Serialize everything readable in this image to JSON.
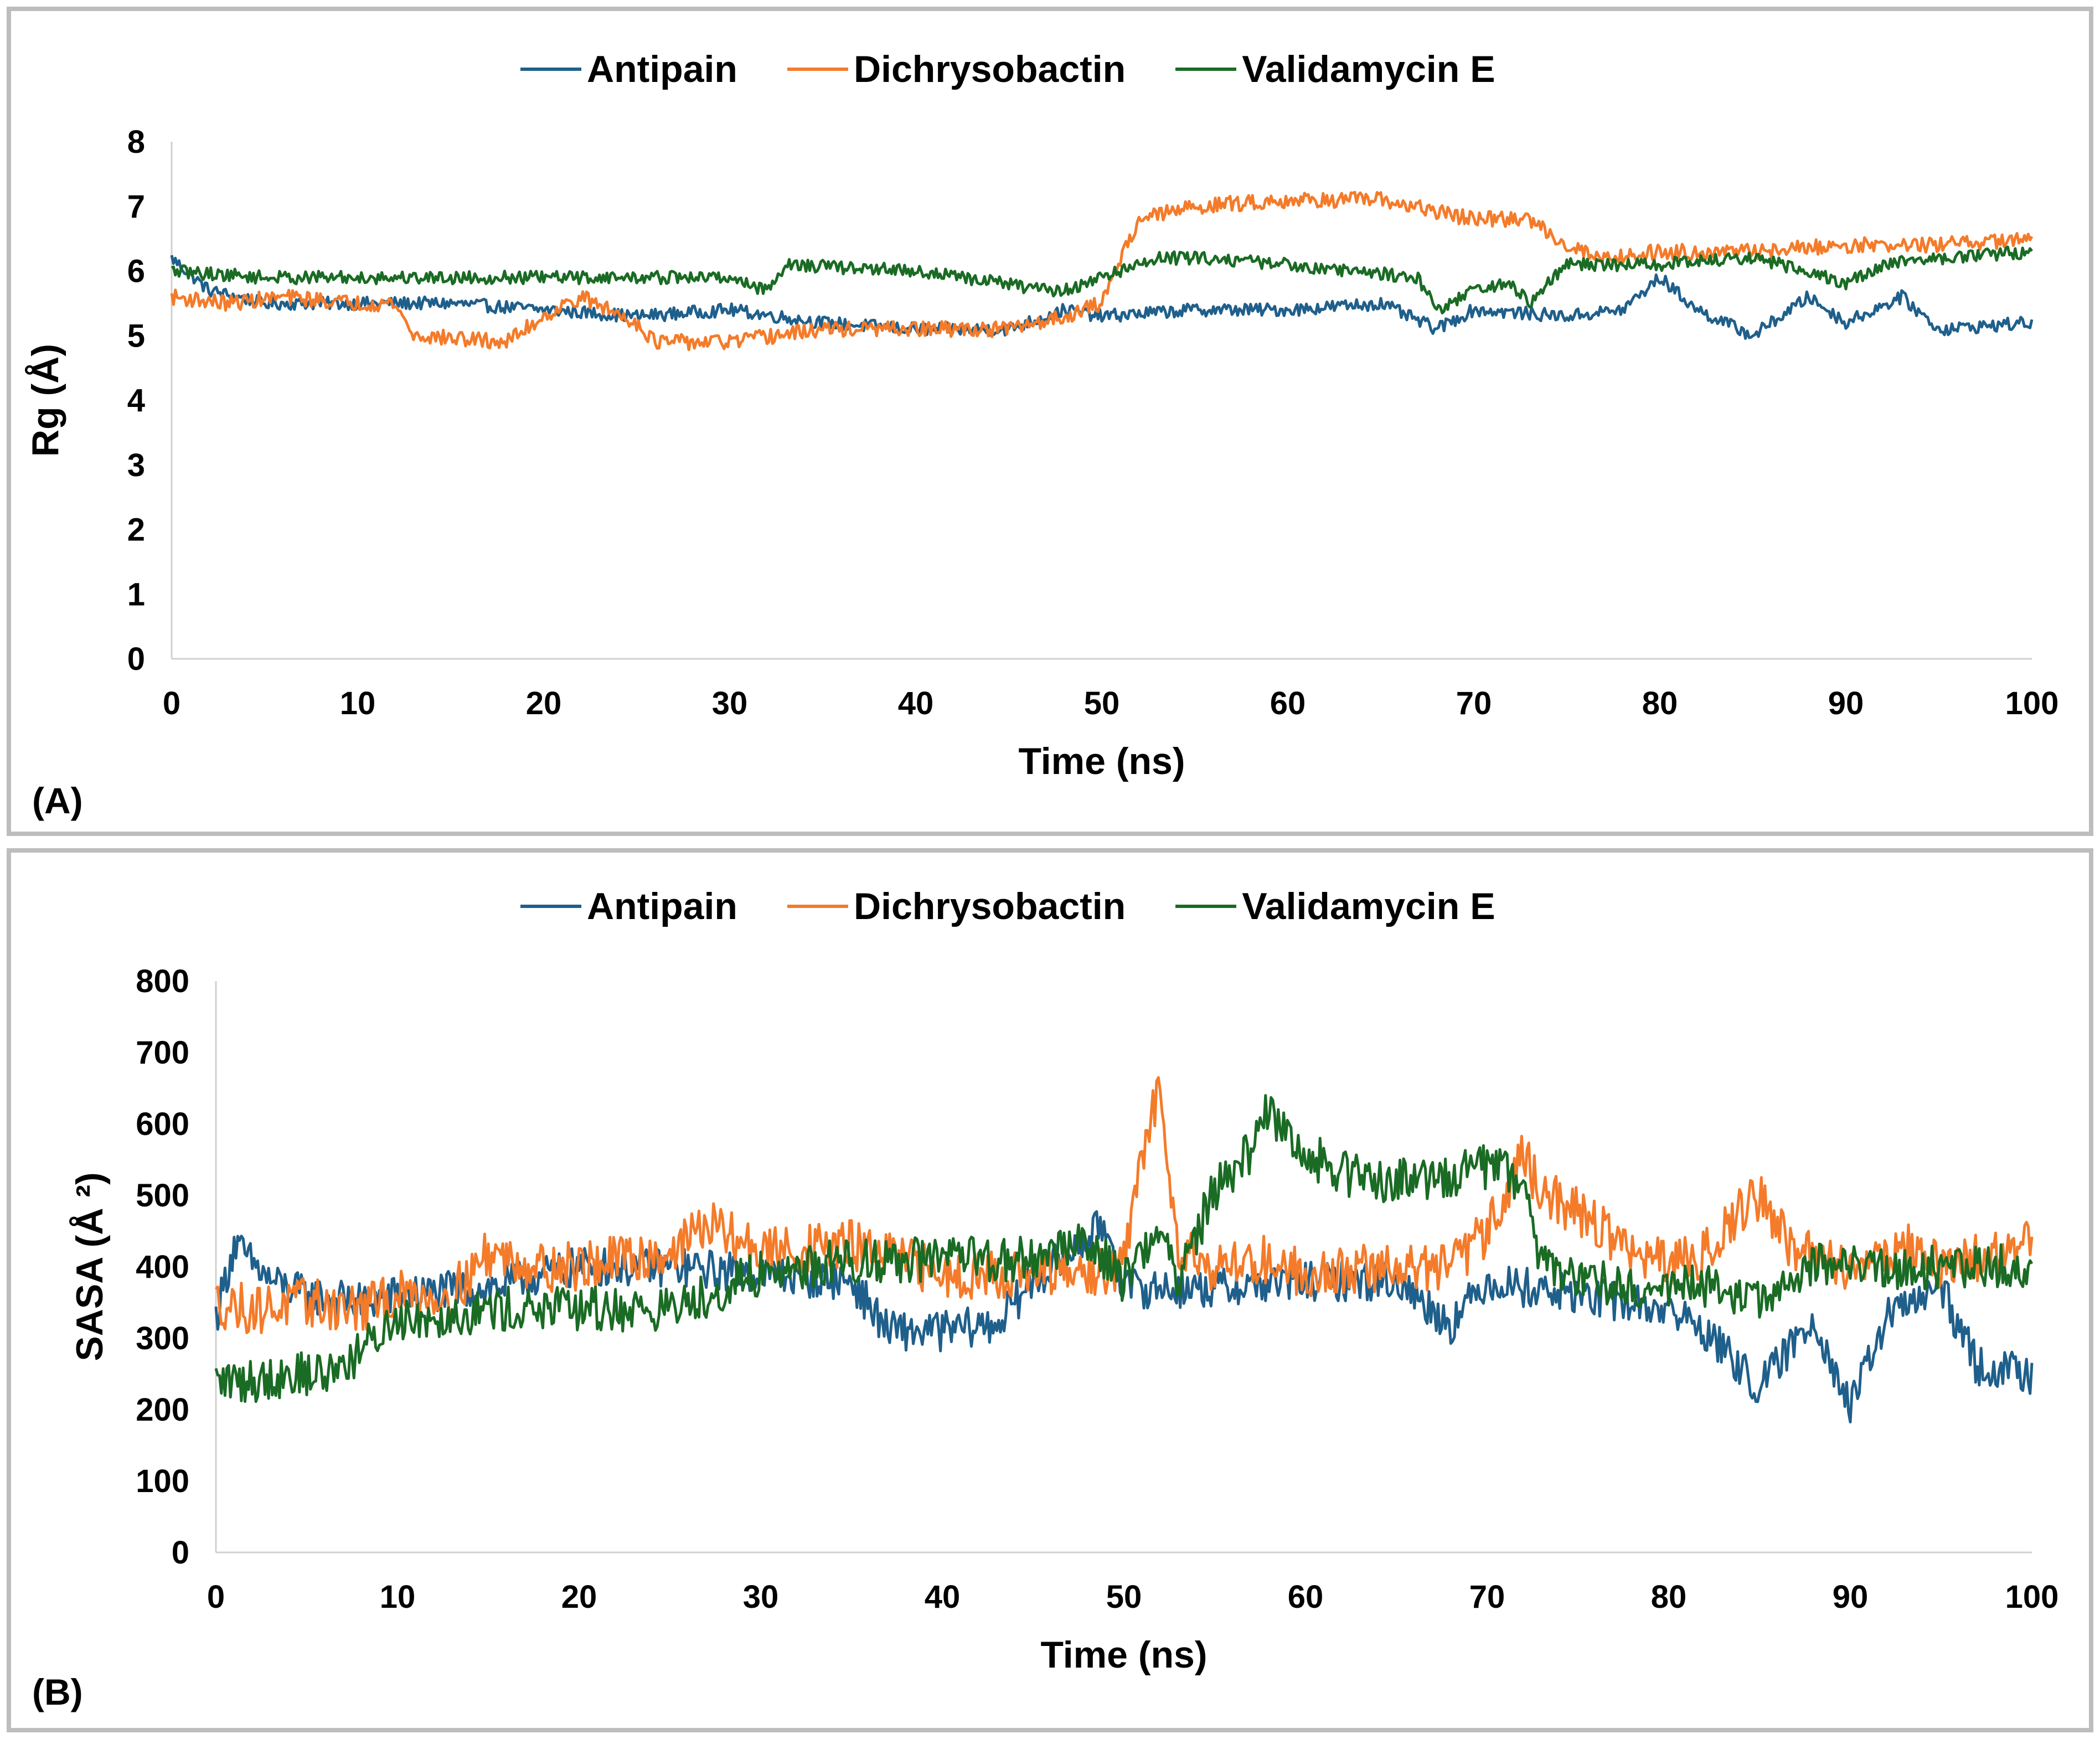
{
  "chart_data": [
    {
      "id": "A",
      "type": "line",
      "panel_label": "(A)",
      "xlabel": "Time (ns)",
      "ylabel": "Rg (Å)",
      "xlim": [
        0,
        100
      ],
      "ylim": [
        0,
        8
      ],
      "xticks": [
        "0",
        "10",
        "20",
        "30",
        "40",
        "50",
        "60",
        "70",
        "80",
        "90",
        "100"
      ],
      "yticks": [
        "0",
        "1",
        "2",
        "3",
        "4",
        "5",
        "6",
        "7",
        "8"
      ],
      "legend_position": "top-center",
      "series": [
        {
          "name": "Antipain",
          "color": "#1f5f8b",
          "x": [
            0,
            2,
            5,
            8,
            10,
            15,
            20,
            25,
            30,
            35,
            40,
            45,
            48,
            50,
            55,
            60,
            65,
            68,
            70,
            75,
            78,
            80,
            82,
            85,
            88,
            90,
            93,
            95,
            100
          ],
          "y": [
            6.2,
            5.7,
            5.5,
            5.5,
            5.5,
            5.5,
            5.4,
            5.3,
            5.4,
            5.2,
            5.1,
            5.1,
            5.4,
            5.3,
            5.4,
            5.4,
            5.5,
            5.1,
            5.4,
            5.3,
            5.4,
            5.9,
            5.4,
            5.0,
            5.6,
            5.2,
            5.6,
            5.1,
            5.2
          ],
          "noise": 0.1
        },
        {
          "name": "Dichrysobactin",
          "color": "#f47b2a",
          "x": [
            0,
            3,
            6,
            10,
            12,
            13,
            18,
            20,
            22,
            25,
            26,
            30,
            35,
            40,
            45,
            48,
            50,
            51,
            52,
            55,
            60,
            65,
            70,
            73,
            75,
            77,
            80,
            85,
            90,
            95,
            100
          ],
          "y": [
            5.6,
            5.5,
            5.6,
            5.5,
            5.5,
            5.0,
            4.9,
            5.3,
            5.6,
            5.2,
            4.9,
            4.9,
            5.1,
            5.1,
            5.1,
            5.3,
            5.5,
            6.2,
            6.8,
            7.0,
            7.1,
            7.1,
            6.8,
            6.8,
            6.4,
            6.2,
            6.3,
            6.3,
            6.4,
            6.4,
            6.5
          ],
          "noise": 0.12
        },
        {
          "name": "Validamycin E",
          "color": "#1a6b24",
          "x": [
            0,
            5,
            10,
            20,
            30,
            32,
            33,
            40,
            45,
            47,
            48,
            50,
            52,
            53,
            56,
            60,
            67,
            68,
            70,
            72,
            73,
            75,
            80,
            85,
            88,
            90,
            92,
            95,
            100
          ],
          "y": [
            6.0,
            5.9,
            5.9,
            5.9,
            5.9,
            5.7,
            6.1,
            6.0,
            5.8,
            5.7,
            5.7,
            5.9,
            6.1,
            6.2,
            6.2,
            6.1,
            5.9,
            5.4,
            5.7,
            5.8,
            5.5,
            6.1,
            6.1,
            6.2,
            6.0,
            5.8,
            6.1,
            6.2,
            6.3
          ],
          "noise": 0.1
        }
      ]
    },
    {
      "id": "B",
      "type": "line",
      "panel_label": "(B)",
      "xlabel": "Time (ns)",
      "ylabel": "SASA (Å ²)",
      "xlim": [
        0,
        100
      ],
      "ylim": [
        0,
        800
      ],
      "xticks": [
        "0",
        "10",
        "20",
        "30",
        "40",
        "50",
        "60",
        "70",
        "80",
        "90",
        "100"
      ],
      "yticks": [
        "0",
        "100",
        "200",
        "300",
        "400",
        "500",
        "600",
        "700",
        "800"
      ],
      "legend_position": "top-center",
      "series": [
        {
          "name": "Antipain",
          "color": "#1f5f8b",
          "x": [
            0,
            1,
            3,
            5,
            8,
            10,
            15,
            20,
            25,
            30,
            35,
            37,
            40,
            43,
            45,
            47,
            49,
            50,
            55,
            60,
            65,
            68,
            70,
            75,
            80,
            82,
            85,
            88,
            90,
            92,
            95,
            97,
            100
          ],
          "y": [
            330,
            430,
            380,
            360,
            350,
            360,
            370,
            400,
            400,
            390,
            380,
            310,
            310,
            320,
            380,
            420,
            460,
            370,
            370,
            380,
            380,
            320,
            380,
            360,
            340,
            310,
            230,
            330,
            200,
            330,
            370,
            260,
            250
          ],
          "noise": 28
        },
        {
          "name": "Dichrysobactin",
          "color": "#f47b2a",
          "x": [
            0,
            2,
            5,
            8,
            10,
            13,
            15,
            18,
            20,
            25,
            27,
            30,
            35,
            40,
            45,
            48,
            50,
            51,
            52,
            53,
            55,
            58,
            60,
            65,
            68,
            70,
            72,
            73,
            75,
            78,
            80,
            82,
            84,
            85,
            87,
            90,
            93,
            95,
            100
          ],
          "y": [
            350,
            340,
            350,
            340,
            360,
            360,
            420,
            400,
            400,
            420,
            460,
            420,
            430,
            390,
            390,
            390,
            400,
            560,
            650,
            430,
            400,
            410,
            390,
            400,
            400,
            450,
            560,
            500,
            480,
            420,
            400,
            420,
            480,
            500,
            420,
            400,
            430,
            400,
            430
          ],
          "noise": 35
        },
        {
          "name": "Validamycin E",
          "color": "#1a6b24",
          "x": [
            0,
            2,
            4,
            6,
            8,
            10,
            12,
            15,
            20,
            25,
            30,
            35,
            40,
            45,
            48,
            50,
            52,
            53,
            55,
            57,
            58,
            60,
            62,
            65,
            68,
            70,
            72,
            73,
            75,
            78,
            80,
            83,
            85,
            88,
            90,
            95,
            100
          ],
          "y": [
            240,
            240,
            250,
            250,
            280,
            330,
            330,
            340,
            340,
            340,
            390,
            410,
            410,
            410,
            440,
            380,
            460,
            380,
            510,
            560,
            620,
            560,
            530,
            520,
            530,
            540,
            520,
            400,
            390,
            370,
            370,
            370,
            350,
            400,
            400,
            400,
            400
          ],
          "noise": 32
        }
      ]
    }
  ]
}
